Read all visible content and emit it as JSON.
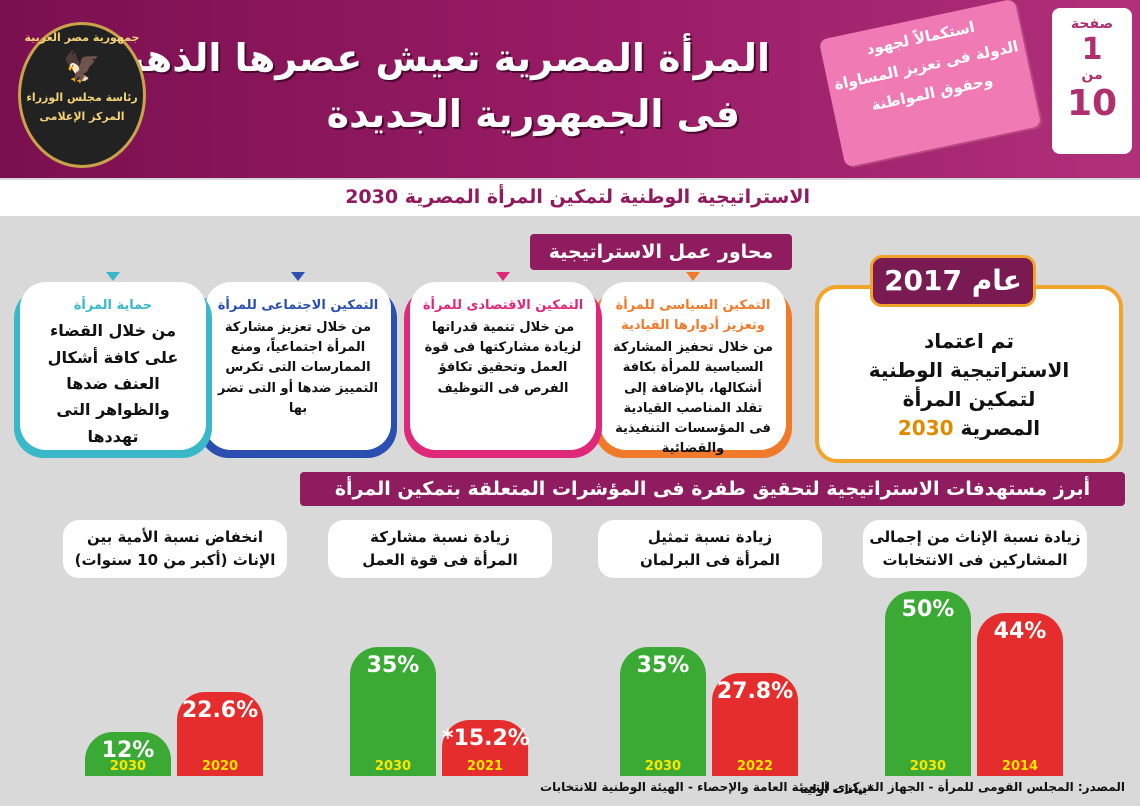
{
  "header": {
    "title_lines": [
      "المرأة المصرية تعيش عصرها الذهبى",
      "فى الجمهورية الجديدة"
    ],
    "ribbon_lines": [
      "استكمالاً لجهود",
      "الدولة فى تعزيز المساواة",
      "وحقوق المواطنة"
    ],
    "page": {
      "label": "صفحة",
      "number": "1",
      "of": "من",
      "total": "10"
    },
    "logo": [
      "جمهورية مصر العربية",
      "رئاسة مجلس الوزراء",
      "المركز الإعلامى"
    ]
  },
  "subtitle": "الاستراتيجية الوطنية لتمكين المرأة المصرية 2030",
  "axes": {
    "title": "محاور عمل الاستراتيجية",
    "year_box": {
      "year": "عام 2017",
      "text_lines": [
        "تم اعتماد",
        "الاستراتيجية الوطنية",
        "لتمكين المرأة",
        "المصرية"
      ],
      "highlight": "2030"
    },
    "cards": [
      {
        "title": "التمكين السياسى للمرأة وتعزيز أدوارها القيادية",
        "body": "من خلال تحفيز المشاركة السياسية للمرأة بكافة أشكالها، بالإضافة إلى تقلد المناصب القيادية فى المؤسسات التنفيذية والقضائية",
        "color": "#f07a2a"
      },
      {
        "title": "التمكين الاقتصادى للمرأة",
        "body": "من خلال تنمية قدراتها لزيادة مشاركتها فى قوة العمل وتحقيق تكافؤ الفرص فى التوظيف",
        "color": "#e0287a"
      },
      {
        "title": "التمكين الاجتماعى للمرأة",
        "body": "من خلال تعزيز مشاركة المرأة اجتماعياً، ومنع الممارسات التى تكرس التمييز ضدها أو التى تضر بها",
        "color": "#2a4fb0"
      },
      {
        "title": "حماية المرأة",
        "body": "من خلال القضاء على كافة أشكال العنف ضدها والظواهر التى تهددها",
        "color": "#3ab8c8"
      }
    ]
  },
  "targets": {
    "title": "أبرز مستهدفات الاستراتيجية لتحقيق طفرة فى المؤشرات المتعلقة بتمكين المرأة",
    "indicators": [
      {
        "title_lines": [
          "زيادة نسبة الإناث من إجمالى",
          "المشاركين فى الانتخابات"
        ],
        "bars": [
          {
            "year": "2030",
            "value": 50,
            "label": "50%",
            "color": "#3aaa35"
          },
          {
            "year": "2014",
            "value": 44,
            "label": "44%",
            "color": "#e52d2d"
          }
        ]
      },
      {
        "title_lines": [
          "زيادة نسبة تمثيل",
          "المرأة فى البرلمان"
        ],
        "bars": [
          {
            "year": "2030",
            "value": 35,
            "label": "35%",
            "color": "#3aaa35"
          },
          {
            "year": "2022",
            "value": 27.8,
            "label": "27.8%",
            "color": "#e52d2d"
          }
        ]
      },
      {
        "title_lines": [
          "زيادة نسبة مشاركة",
          "المرأة فى قوة العمل"
        ],
        "bars": [
          {
            "year": "2030",
            "value": 35,
            "label": "35%",
            "color": "#3aaa35"
          },
          {
            "year": "2021",
            "value": 15.2,
            "label": "*15.2%",
            "color": "#e52d2d"
          }
        ]
      },
      {
        "title_lines": [
          "انخفاض نسبة الأمية بين",
          "الإناث (أكبر من 10 سنوات)"
        ],
        "bars": [
          {
            "year": "2030",
            "value": 12,
            "label": "12%",
            "color": "#3aaa35"
          },
          {
            "year": "2020",
            "value": 22.6,
            "label": "22.6%",
            "color": "#e52d2d"
          }
        ]
      }
    ]
  },
  "footnote": "*بيانات أولية",
  "source": "المصدر: المجلس القومى للمرأة - الجهاز المركزى للتعبئة العامة والإحصاء - الهيئة الوطنية للانتخابات"
}
